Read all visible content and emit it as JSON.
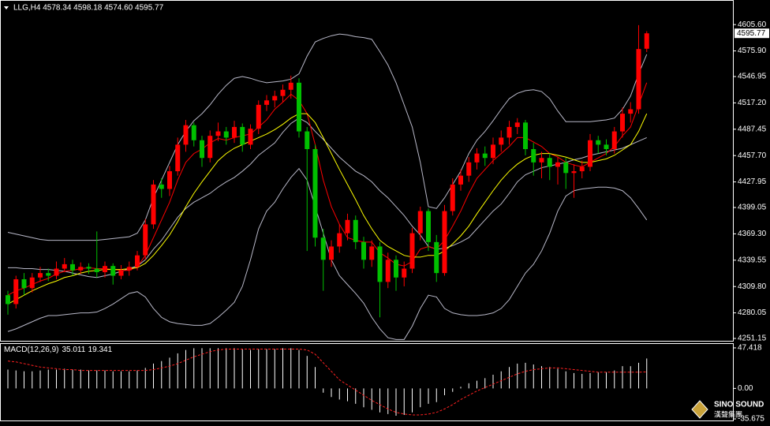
{
  "chart_data": [
    {
      "type": "candlestick",
      "title": "LLG,H4  4578.34 4598.18 4574.60 4595.77",
      "up_color": "#ff0000",
      "down_color": "#00c000",
      "open": [
        4300,
        4290,
        4318,
        4308,
        4320,
        4325,
        4322,
        4330,
        4335,
        4328,
        4332,
        4330,
        4326,
        4333,
        4322,
        4328,
        4332,
        4345,
        4380,
        4425,
        4420,
        4440,
        4470,
        4492,
        4475,
        4455,
        4480,
        4485,
        4478,
        4490,
        4470,
        4488,
        4515,
        4520,
        4525,
        4532,
        4540,
        4485,
        4465,
        4365,
        4340,
        4355,
        4370,
        4385,
        4360,
        4340,
        4355,
        4315,
        4340,
        4320,
        4330,
        4370,
        4395,
        4360,
        4325,
        4395,
        4425,
        4435,
        4450,
        4460,
        4455,
        4470,
        4478,
        4490,
        4495,
        4465,
        4450,
        4455,
        4445,
        4450,
        4438,
        4440,
        4445,
        4475,
        4470,
        4465,
        4485,
        4505,
        4510,
        4578.34
      ],
      "high": [
        4305,
        4322,
        4325,
        4325,
        4332,
        4330,
        4338,
        4342,
        4340,
        4337,
        4336,
        4372,
        4338,
        4336,
        4334,
        4338,
        4350,
        4386,
        4430,
        4432,
        4446,
        4478,
        4498,
        4495,
        4480,
        4486,
        4495,
        4490,
        4497,
        4494,
        4493,
        4520,
        4526,
        4531,
        4538,
        4548,
        4545,
        4490,
        4470,
        4375,
        4362,
        4380,
        4392,
        4390,
        4366,
        4362,
        4360,
        4348,
        4345,
        4338,
        4376,
        4400,
        4398,
        4368,
        4402,
        4432,
        4442,
        4456,
        4466,
        4468,
        4478,
        4486,
        4497,
        4500,
        4498,
        4472,
        4462,
        4460,
        4456,
        4455,
        4448,
        4452,
        4482,
        4480,
        4476,
        4490,
        4512,
        4518,
        4605,
        4598.18
      ],
      "low": [
        4278,
        4285,
        4300,
        4303,
        4315,
        4316,
        4318,
        4326,
        4322,
        4324,
        4324,
        4320,
        4320,
        4312,
        4318,
        4322,
        4328,
        4340,
        4375,
        4410,
        4412,
        4435,
        4462,
        4468,
        4445,
        4450,
        4474,
        4470,
        4472,
        4462,
        4465,
        4482,
        4508,
        4512,
        4518,
        4522,
        4478,
        4350,
        4355,
        4305,
        4332,
        4348,
        4362,
        4352,
        4330,
        4332,
        4275,
        4308,
        4305,
        4310,
        4325,
        4362,
        4350,
        4315,
        4322,
        4390,
        4418,
        4428,
        4442,
        4446,
        4448,
        4462,
        4470,
        4482,
        4458,
        4435,
        4432,
        4430,
        4425,
        4420,
        4410,
        4432,
        4440,
        4460,
        4458,
        4460,
        4478,
        4495,
        4505,
        4574.6
      ],
      "close": [
        4290,
        4318,
        4308,
        4320,
        4325,
        4322,
        4330,
        4335,
        4328,
        4332,
        4330,
        4326,
        4333,
        4322,
        4328,
        4332,
        4345,
        4380,
        4425,
        4420,
        4440,
        4470,
        4492,
        4475,
        4455,
        4480,
        4485,
        4478,
        4490,
        4470,
        4488,
        4515,
        4520,
        4525,
        4532,
        4540,
        4485,
        4465,
        4365,
        4340,
        4355,
        4370,
        4385,
        4360,
        4340,
        4355,
        4315,
        4340,
        4320,
        4330,
        4370,
        4395,
        4360,
        4325,
        4395,
        4425,
        4435,
        4450,
        4460,
        4455,
        4470,
        4478,
        4490,
        4495,
        4465,
        4450,
        4455,
        4445,
        4450,
        4438,
        4440,
        4445,
        4475,
        4470,
        4465,
        4485,
        4505,
        4510,
        4578,
        4595.77
      ],
      "overlays": [
        {
          "color": "#b8b8c8",
          "values": [
            4371,
            4369,
            4367,
            4365,
            4363,
            4362,
            4362,
            4362,
            4362,
            4362,
            4362,
            4362,
            4363,
            4364,
            4365,
            4366,
            4370,
            4385,
            4410,
            4430,
            4450,
            4470,
            4485,
            4497,
            4505,
            4515,
            4527,
            4537,
            4545,
            4547,
            4545,
            4542,
            4540,
            4541,
            4542,
            4544,
            4550,
            4570,
            4586,
            4590,
            4593,
            4595,
            4594,
            4592,
            4591,
            4589,
            4575,
            4560,
            4540,
            4515,
            4490,
            4450,
            4400,
            4398,
            4410,
            4425,
            4440,
            4460,
            4475,
            4485,
            4497,
            4510,
            4522,
            4528,
            4531,
            4532,
            4530,
            4522,
            4508,
            4496,
            4496,
            4496,
            4496,
            4497,
            4498,
            4500,
            4510,
            4525,
            4550,
            4572
          ]
        },
        {
          "color": "#b8b8c8",
          "values": [
            4331,
            4331,
            4330,
            4330,
            4329,
            4329,
            4328,
            4327,
            4325,
            4323,
            4321,
            4320,
            4322,
            4324,
            4327,
            4330,
            4333,
            4340,
            4352,
            4362,
            4375,
            4388,
            4398,
            4405,
            4410,
            4415,
            4422,
            4428,
            4433,
            4440,
            4448,
            4458,
            4465,
            4472,
            4484,
            4494,
            4500,
            4495,
            4485,
            4476,
            4466,
            4456,
            4448,
            4440,
            4435,
            4428,
            4418,
            4410,
            4400,
            4390,
            4378,
            4368,
            4355,
            4352,
            4353,
            4356,
            4360,
            4365,
            4375,
            4385,
            4395,
            4403,
            4415,
            4428,
            4436,
            4440,
            4444,
            4446,
            4448,
            4450,
            4453,
            4455,
            4458,
            4460,
            4462,
            4464,
            4466,
            4470,
            4474,
            4478
          ]
        },
        {
          "color": "#b8b8c8",
          "values": [
            4259,
            4262,
            4266,
            4270,
            4274,
            4277,
            4277,
            4278,
            4279,
            4280,
            4280,
            4281,
            4285,
            4290,
            4296,
            4302,
            4304,
            4298,
            4285,
            4275,
            4270,
            4268,
            4267,
            4266,
            4266,
            4268,
            4275,
            4283,
            4292,
            4310,
            4340,
            4375,
            4395,
            4405,
            4420,
            4433,
            4443,
            4430,
            4400,
            4370,
            4340,
            4322,
            4312,
            4302,
            4291,
            4275,
            4262,
            4252,
            4250,
            4250,
            4265,
            4285,
            4300,
            4298,
            4285,
            4280,
            4278,
            4277,
            4277,
            4278,
            4280,
            4285,
            4295,
            4310,
            4325,
            4335,
            4350,
            4370,
            4395,
            4412,
            4418,
            4420,
            4421,
            4422,
            4422,
            4421,
            4418,
            4410,
            4398,
            4385
          ]
        },
        {
          "color": "#ff0000",
          "values": [
            4300,
            4305,
            4308,
            4312,
            4316,
            4319,
            4324,
            4327,
            4328,
            4330,
            4331,
            4330,
            4330,
            4329,
            4328,
            4328,
            4332,
            4345,
            4365,
            4385,
            4405,
            4430,
            4450,
            4460,
            4465,
            4472,
            4477,
            4475,
            4478,
            4480,
            4482,
            4490,
            4498,
            4510,
            4518,
            4527,
            4520,
            4505,
            4470,
            4430,
            4400,
            4380,
            4365,
            4362,
            4360,
            4360,
            4348,
            4342,
            4335,
            4333,
            4338,
            4352,
            4355,
            4352,
            4362,
            4378,
            4395,
            4415,
            4432,
            4442,
            4452,
            4460,
            4468,
            4478,
            4478,
            4473,
            4468,
            4460,
            4456,
            4450,
            4447,
            4445,
            4450,
            4455,
            4460,
            4468,
            4480,
            4490,
            4515,
            4540
          ]
        },
        {
          "color": "#ffff00",
          "values": [
            4290,
            4295,
            4300,
            4305,
            4309,
            4313,
            4316,
            4320,
            4322,
            4325,
            4327,
            4328,
            4329,
            4329,
            4329,
            4330,
            4331,
            4336,
            4345,
            4356,
            4368,
            4383,
            4400,
            4415,
            4428,
            4440,
            4452,
            4460,
            4466,
            4470,
            4474,
            4478,
            4482,
            4487,
            4493,
            4500,
            4505,
            4505,
            4495,
            4478,
            4460,
            4442,
            4425,
            4408,
            4390,
            4375,
            4362,
            4355,
            4350,
            4345,
            4343,
            4343,
            4345,
            4345,
            4350,
            4358,
            4367,
            4378,
            4392,
            4405,
            4418,
            4430,
            4440,
            4448,
            4454,
            4458,
            4460,
            4460,
            4458,
            4456,
            4453,
            4450,
            4450,
            4452,
            4454,
            4458,
            4464,
            4470,
            4485,
            4505
          ]
        }
      ],
      "ylim": [
        4248.5,
        4632.5
      ],
      "yticks": [
        {
          "value": 4605.6,
          "label": "4605.60"
        },
        {
          "value": 4575.9,
          "label": "4575.90"
        },
        4546.95,
        {
          "value": 4517.2,
          "label": "4517.20"
        },
        4487.45,
        {
          "value": 4457.7,
          "label": "4457.70"
        },
        4427.95,
        4399.05,
        {
          "value": 4369.3,
          "label": "4369.30"
        },
        4339.55,
        {
          "value": 4309.8,
          "label": "4309.80"
        },
        4280.05,
        4251.15
      ],
      "price_tag_color": "#ffffff"
    },
    {
      "type": "macd",
      "title": "MACD(12,26,9)",
      "series": [
        {
          "color": "#ffffff",
          "style": "histogram",
          "values": [
            22,
            21,
            20,
            20,
            21,
            22,
            22,
            23,
            22,
            22,
            21,
            21,
            21,
            20,
            20,
            20,
            21,
            24,
            29,
            32,
            36,
            41,
            45,
            47,
            47,
            47,
            47,
            47,
            47,
            46,
            45,
            46,
            46,
            46,
            47,
            47,
            45,
            38,
            25,
            -5,
            -10,
            -13,
            -15,
            -18,
            -22,
            -25,
            -28,
            -30,
            -32,
            -31,
            -28,
            -22,
            -18,
            -16,
            -8,
            -4,
            2,
            6,
            9,
            12,
            16,
            20,
            25,
            29,
            30,
            28,
            26,
            25,
            23,
            20,
            18,
            17,
            18,
            19,
            19,
            21,
            26,
            26,
            30,
            35.011
          ]
        },
        {
          "color": "#ff2020",
          "style": "dashed",
          "values": [
            32,
            31,
            29,
            27,
            25,
            24,
            23,
            22,
            22,
            21,
            21,
            21,
            21,
            21,
            21,
            21,
            21,
            21,
            22,
            24,
            26,
            29,
            33,
            37,
            40,
            43,
            45,
            46,
            46,
            46,
            46,
            46,
            46,
            46,
            46,
            46,
            46,
            45,
            40,
            30,
            20,
            10,
            4,
            -2,
            -8,
            -14,
            -19,
            -24,
            -28,
            -30,
            -31,
            -31,
            -30,
            -28,
            -24,
            -19,
            -13,
            -8,
            -3,
            1,
            5,
            9,
            13,
            17,
            20,
            22,
            23,
            24,
            24,
            23,
            22,
            21,
            20,
            19,
            19,
            19,
            19,
            19,
            19,
            19.341
          ]
        }
      ],
      "ylim": [
        -37.5,
        52
      ],
      "yticks": [
        47.418,
        {
          "value": 0,
          "label": "0.00"
        },
        -35.675
      ]
    }
  ],
  "watermark": {
    "name": "SINO SOUND",
    "subtitle": "漢聲集團"
  }
}
